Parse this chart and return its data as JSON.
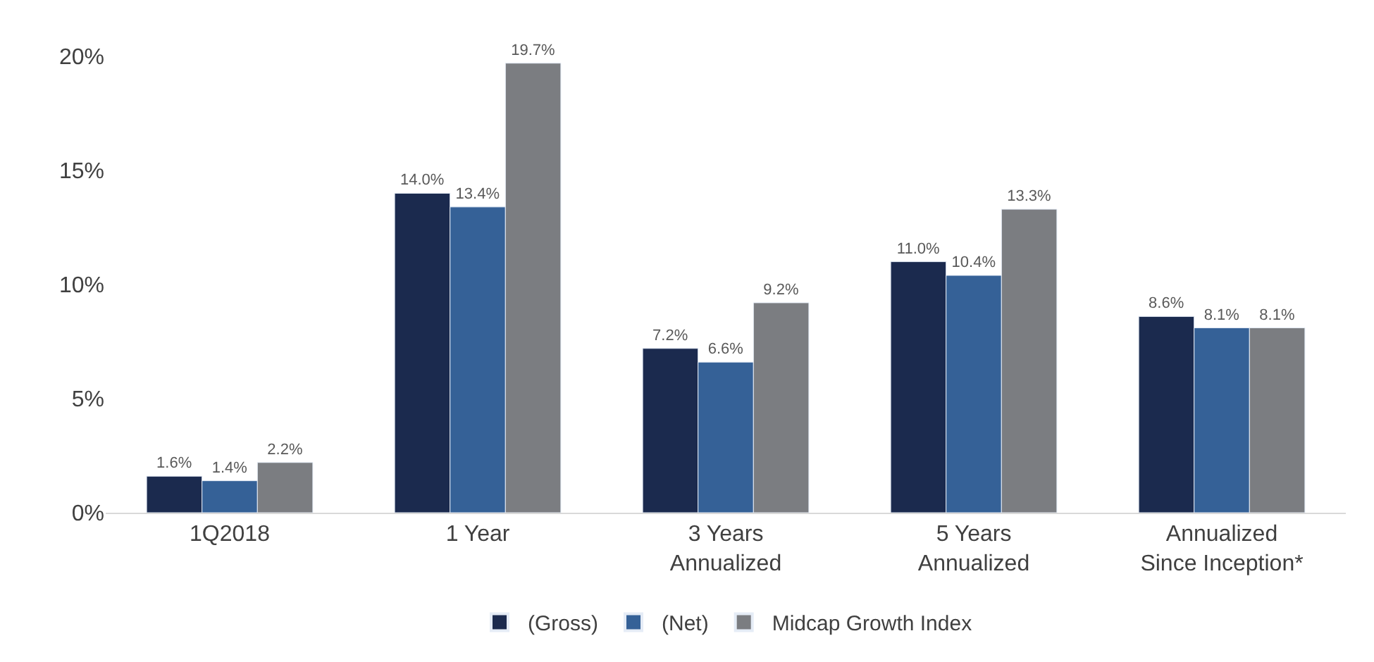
{
  "chart_data": {
    "type": "bar",
    "categories": [
      "1Q2018",
      "1 Year",
      "3 Years\nAnnualized",
      "5 Years\nAnnualized",
      "Annualized\nSince Inception*"
    ],
    "series": [
      {
        "name": "(Gross)",
        "color": "#1b2a4e",
        "values": [
          1.6,
          14.0,
          7.2,
          11.0,
          8.6
        ],
        "value_labels": [
          "1.6%",
          "14.0%",
          "7.2%",
          "11.0%",
          "8.6%"
        ]
      },
      {
        "name": "(Net)",
        "color": "#356197",
        "values": [
          1.4,
          13.4,
          6.6,
          10.4,
          8.1
        ],
        "value_labels": [
          "1.4%",
          "13.4%",
          "6.6%",
          "10.4%",
          "8.1%"
        ]
      },
      {
        "name": "Midcap Growth Index",
        "color": "#7b7d81",
        "values": [
          2.2,
          19.7,
          9.2,
          13.3,
          8.1
        ],
        "value_labels": [
          "2.2%",
          "19.7%",
          "9.2%",
          "13.3%",
          "8.1%"
        ]
      }
    ],
    "ylim": [
      0,
      20
    ],
    "yticks": [
      {
        "value": 0,
        "label": "0%"
      },
      {
        "value": 5,
        "label": "5%"
      },
      {
        "value": 10,
        "label": "10%"
      },
      {
        "value": 15,
        "label": "15%"
      },
      {
        "value": 20,
        "label": "20%"
      }
    ],
    "legend": "bottom"
  }
}
